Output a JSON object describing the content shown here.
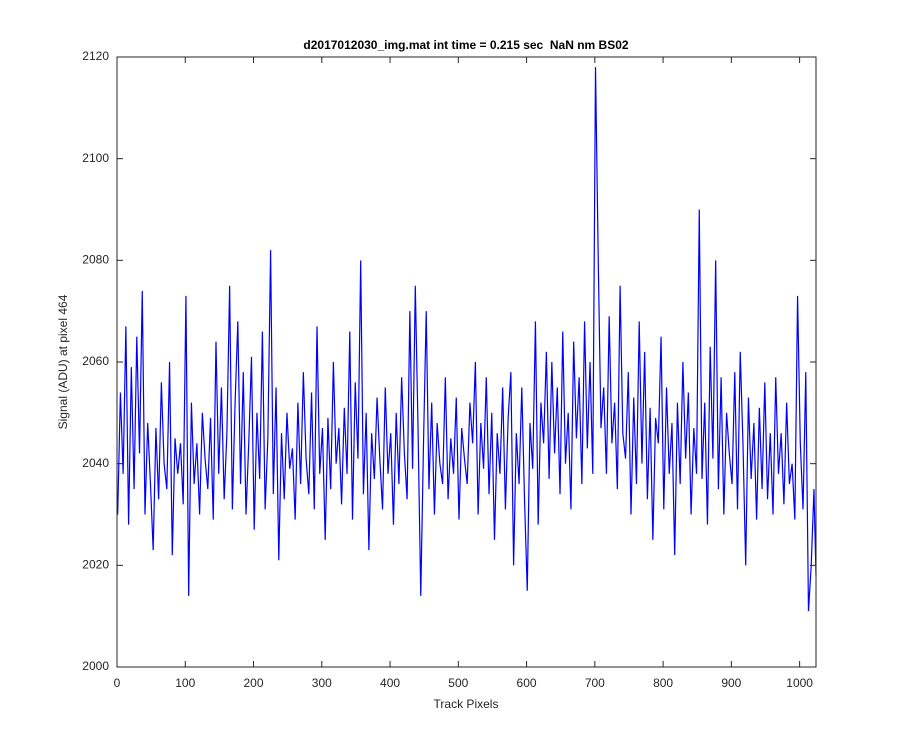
{
  "chart_data": {
    "type": "line",
    "title": "d2017012030_img.mat int time = 0.215 sec  NaN nm BS02",
    "x_label": "Track Pixels",
    "y_label": "Signal (ADU) at pixel 464",
    "xlim": [
      0,
      1024
    ],
    "ylim": [
      2000,
      2120
    ],
    "xticks": [
      0,
      100,
      200,
      300,
      400,
      500,
      600,
      700,
      800,
      900,
      1000
    ],
    "yticks": [
      2000,
      2020,
      2040,
      2060,
      2080,
      2100,
      2120
    ],
    "grid": false,
    "x": [
      1,
      5,
      9,
      13,
      17,
      21,
      25,
      29,
      33,
      37,
      41,
      45,
      49,
      53,
      57,
      61,
      65,
      69,
      73,
      77,
      81,
      85,
      89,
      93,
      97,
      101,
      105,
      109,
      113,
      117,
      121,
      125,
      129,
      133,
      137,
      141,
      145,
      149,
      153,
      157,
      161,
      165,
      169,
      173,
      177,
      181,
      185,
      189,
      193,
      197,
      201,
      205,
      209,
      213,
      217,
      221,
      225,
      229,
      233,
      237,
      241,
      245,
      249,
      253,
      257,
      261,
      265,
      269,
      273,
      277,
      281,
      285,
      289,
      293,
      297,
      301,
      305,
      309,
      313,
      317,
      321,
      325,
      329,
      333,
      337,
      341,
      345,
      349,
      353,
      357,
      361,
      365,
      369,
      373,
      377,
      381,
      385,
      389,
      393,
      397,
      401,
      405,
      409,
      413,
      417,
      421,
      425,
      429,
      433,
      437,
      441,
      445,
      449,
      453,
      457,
      461,
      465,
      469,
      473,
      477,
      481,
      485,
      489,
      493,
      497,
      501,
      505,
      509,
      513,
      517,
      521,
      525,
      529,
      533,
      537,
      541,
      545,
      549,
      553,
      557,
      561,
      565,
      569,
      573,
      577,
      581,
      585,
      589,
      593,
      597,
      601,
      605,
      609,
      613,
      617,
      621,
      625,
      629,
      633,
      637,
      641,
      645,
      649,
      653,
      657,
      661,
      665,
      669,
      673,
      677,
      681,
      685,
      689,
      693,
      697,
      701,
      705,
      709,
      713,
      717,
      721,
      725,
      729,
      733,
      737,
      741,
      745,
      749,
      753,
      757,
      761,
      765,
      769,
      773,
      777,
      781,
      785,
      789,
      793,
      797,
      801,
      805,
      809,
      813,
      817,
      821,
      825,
      829,
      833,
      837,
      841,
      845,
      849,
      853,
      857,
      861,
      865,
      869,
      873,
      877,
      881,
      885,
      889,
      893,
      897,
      901,
      905,
      909,
      913,
      917,
      921,
      925,
      929,
      933,
      937,
      941,
      945,
      949,
      953,
      957,
      961,
      965,
      969,
      973,
      977,
      981,
      985,
      989,
      993,
      997,
      1001,
      1005,
      1009,
      1013,
      1017,
      1021,
      1024
    ],
    "series": [
      {
        "name": "signal",
        "color": "#0000ff",
        "values": [
          2030,
          2054,
          2038,
          2067,
          2028,
          2059,
          2035,
          2065,
          2042,
          2074,
          2030,
          2048,
          2036,
          2023,
          2047,
          2033,
          2056,
          2040,
          2035,
          2060,
          2022,
          2045,
          2038,
          2044,
          2032,
          2073,
          2014,
          2052,
          2036,
          2044,
          2030,
          2050,
          2041,
          2035,
          2049,
          2029,
          2064,
          2038,
          2055,
          2033,
          2046,
          2075,
          2031,
          2052,
          2068,
          2036,
          2058,
          2030,
          2044,
          2061,
          2027,
          2050,
          2037,
          2066,
          2031,
          2045,
          2082,
          2034,
          2055,
          2021,
          2046,
          2033,
          2050,
          2039,
          2043,
          2029,
          2052,
          2036,
          2058,
          2041,
          2034,
          2054,
          2031,
          2067,
          2038,
          2047,
          2025,
          2049,
          2035,
          2060,
          2040,
          2047,
          2032,
          2051,
          2038,
          2066,
          2029,
          2056,
          2041,
          2080,
          2034,
          2050,
          2023,
          2046,
          2037,
          2053,
          2041,
          2031,
          2055,
          2038,
          2046,
          2028,
          2050,
          2036,
          2057,
          2042,
          2033,
          2070,
          2039,
          2075,
          2047,
          2014,
          2044,
          2070,
          2035,
          2052,
          2030,
          2048,
          2040,
          2036,
          2057,
          2033,
          2045,
          2038,
          2053,
          2029,
          2047,
          2041,
          2036,
          2052,
          2044,
          2060,
          2030,
          2048,
          2039,
          2057,
          2034,
          2050,
          2025,
          2046,
          2038,
          2055,
          2031,
          2049,
          2058,
          2020,
          2046,
          2036,
          2055,
          2033,
          2015,
          2048,
          2039,
          2068,
          2028,
          2052,
          2044,
          2062,
          2037,
          2060,
          2042,
          2055,
          2034,
          2066,
          2040,
          2050,
          2031,
          2064,
          2045,
          2057,
          2036,
          2068,
          2043,
          2060,
          2038,
          2118,
          2080,
          2047,
          2055,
          2038,
          2069,
          2044,
          2052,
          2035,
          2075,
          2046,
          2041,
          2058,
          2030,
          2053,
          2036,
          2068,
          2040,
          2062,
          2033,
          2051,
          2025,
          2049,
          2044,
          2065,
          2031,
          2055,
          2038,
          2048,
          2022,
          2052,
          2036,
          2060,
          2041,
          2054,
          2030,
          2047,
          2038,
          2090,
          2037,
          2052,
          2028,
          2063,
          2041,
          2080,
          2035,
          2057,
          2030,
          2050,
          2042,
          2036,
          2058,
          2031,
          2062,
          2044,
          2020,
          2053,
          2037,
          2048,
          2029,
          2051,
          2035,
          2056,
          2033,
          2046,
          2030,
          2057,
          2038,
          2046,
          2032,
          2052,
          2036,
          2040,
          2029,
          2073,
          2044,
          2031,
          2058,
          2011,
          2020,
          2035,
          2018
        ]
      }
    ]
  }
}
